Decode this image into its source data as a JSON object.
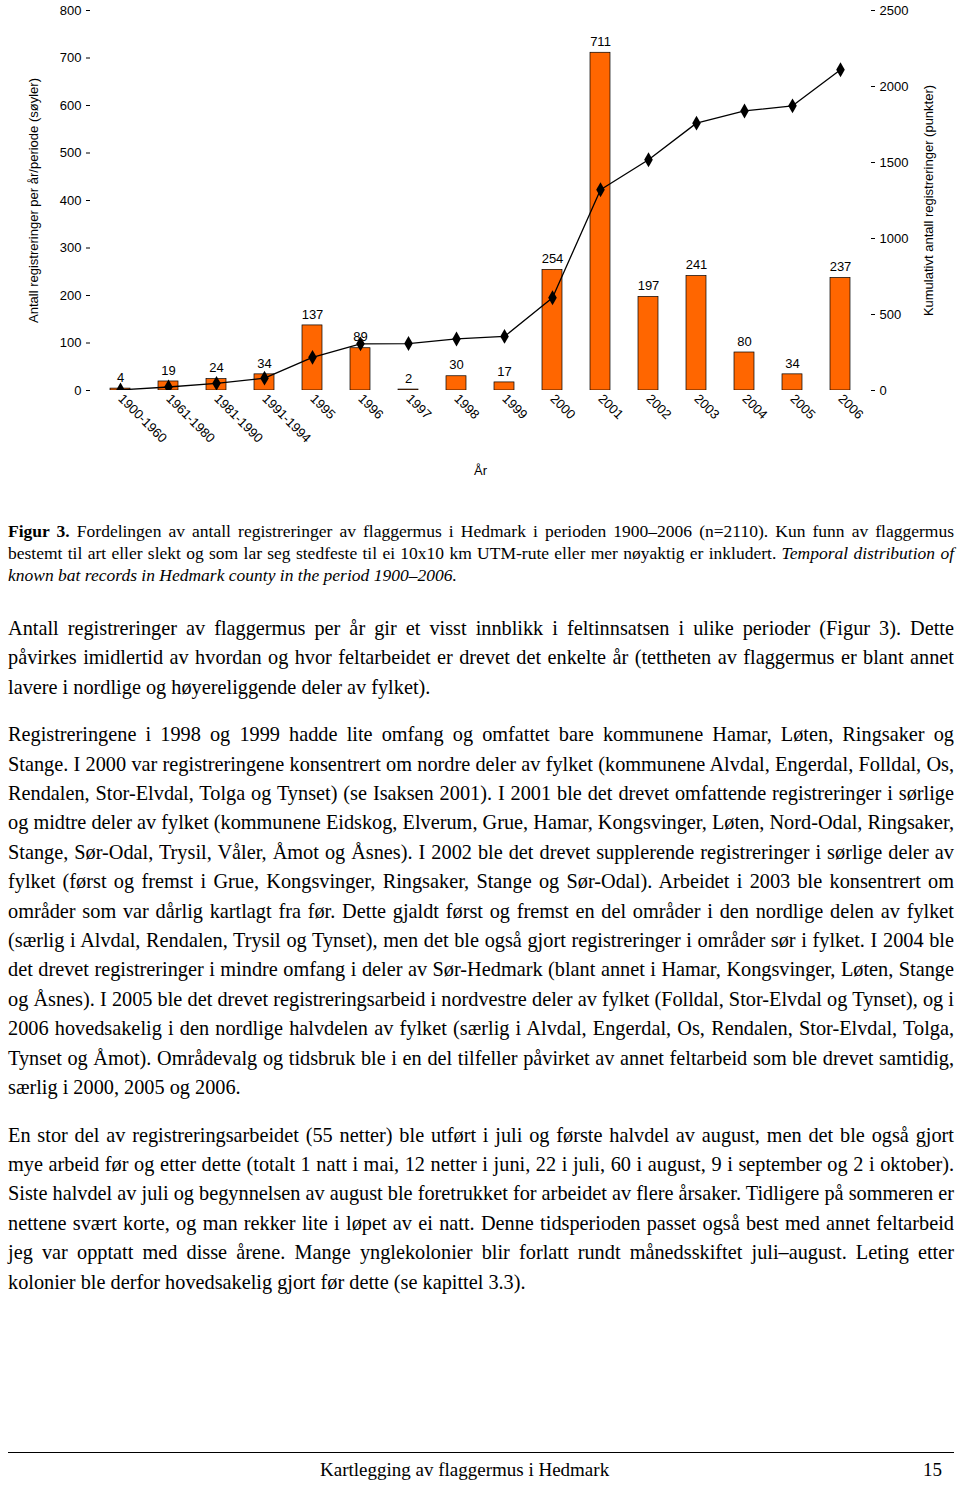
{
  "chart_data": {
    "type": "bar",
    "categories": [
      "1900-1960",
      "1961-1980",
      "1981-1990",
      "1991-1994",
      "1995",
      "1996",
      "1997",
      "1998",
      "1999",
      "2000",
      "2001",
      "2002",
      "2003",
      "2004",
      "2005",
      "2006"
    ],
    "series": [
      {
        "type": "bar",
        "color": "#ff6600",
        "data_labels": true,
        "values": [
          4,
          19,
          24,
          34,
          137,
          89,
          2,
          30,
          17,
          254,
          711,
          197,
          241,
          80,
          34,
          237
        ]
      },
      {
        "type": "line",
        "axis": "y2",
        "color": "#000000",
        "marker": "diamond",
        "line_style": "solid",
        "values": [
          4,
          23,
          47,
          81,
          218,
          307,
          309,
          339,
          356,
          610,
          1321,
          1518,
          1759,
          1839,
          1873,
          2110
        ]
      }
    ],
    "x_label": "År",
    "y_label": "Antall registreringer per år/periode (søyler)",
    "y2_label": "Kumulativt antall registreringer (punkter)",
    "ylim": [
      0,
      800
    ],
    "yticks": [
      0,
      100,
      200,
      300,
      400,
      500,
      600,
      700,
      800
    ],
    "y2lim": [
      0,
      2500
    ],
    "y2ticks": [
      0,
      500,
      1000,
      1500,
      2000,
      2500
    ],
    "grid": false
  },
  "caption": {
    "label": "Figur 3.",
    "text": "Fordelingen av antall registreringer av flaggermus i Hedmark i perioden 1900–2006 (n=2110). Kun funn av flaggermus bestemt til art eller slekt og som lar seg stedfeste til ei 10x10 km UTM-rute eller mer nøyaktig er inkludert.",
    "english": "Temporal distribution of known bat records in Hedmark county in the period 1900–2006."
  },
  "paragraphs": [
    "Antall registreringer av flaggermus per år gir et visst innblikk i feltinnsatsen i ulike perioder (Figur 3). Dette påvirkes imidlertid av hvordan og hvor feltarbeidet er drevet det enkelte år (tettheten av flaggermus er blant annet lavere i nordlige og høyereliggende deler av fylket).",
    "Registreringene i 1998 og 1999 hadde lite omfang og omfattet bare kommunene Hamar, Løten, Ringsaker og Stange. I 2000 var registreringene konsentrert om nordre deler av fylket (kommunene Alvdal, Engerdal, Folldal, Os, Rendalen, Stor-Elvdal, Tolga og Tynset) (se Isaksen 2001). I 2001 ble det drevet omfattende registreringer i sørlige og midtre deler av fylket (kommunene Eidskog, Elverum, Grue, Hamar, Kongsvinger, Løten, Nord-Odal, Ringsaker, Stange, Sør-Odal, Trysil, Våler, Åmot og Åsnes). I 2002 ble det drevet supplerende registreringer i sørlige deler av fylket (først og fremst i Grue, Kongsvinger, Ringsaker, Stange og Sør-Odal). Arbeidet i 2003 ble konsentrert om områder som var dårlig kartlagt fra før. Dette gjaldt først og fremst en del områder i den nordlige delen av fylket (særlig i Alvdal, Rendalen, Trysil og Tynset), men det ble også gjort registreringer i områder sør i fylket. I 2004 ble det drevet registreringer i mindre omfang i deler av Sør-Hedmark (blant annet i Hamar, Kongsvinger, Løten, Stange og Åsnes). I 2005 ble det drevet registreringsarbeid i nordvestre deler av fylket (Folldal, Stor-Elvdal og Tynset), og i 2006 hovedsakelig i den nordlige halvdelen av fylket (særlig i Alvdal, Engerdal, Os, Rendalen, Stor-Elvdal, Tolga, Tynset og Åmot). Områdevalg og tidsbruk ble i en del tilfeller påvirket av annet feltarbeid som ble drevet samtidig, særlig i 2000, 2005 og 2006.",
    "En stor del av registreringsarbeidet (55 netter) ble utført i juli og første halvdel av august, men det ble også gjort mye arbeid før og etter dette (totalt 1 natt i mai, 12 netter i juni, 22 i juli, 60 i august, 9 i september og 2 i oktober). Siste halvdel av juli og begynnelsen av august ble foretrukket for arbeidet av flere årsaker. Tidligere på sommeren er nettene svært korte, og man rekker lite i løpet av ei natt. Denne tidsperioden passet også best med annet feltarbeid jeg var opptatt med disse årene. Mange ynglekolonier blir forlatt rundt månedsskiftet juli–august. Leting etter kolonier ble derfor hovedsakelig gjort før dette (se kapittel 3.3)."
  ],
  "footer": {
    "title": "Kartlegging av flaggermus i Hedmark",
    "page": "15"
  }
}
